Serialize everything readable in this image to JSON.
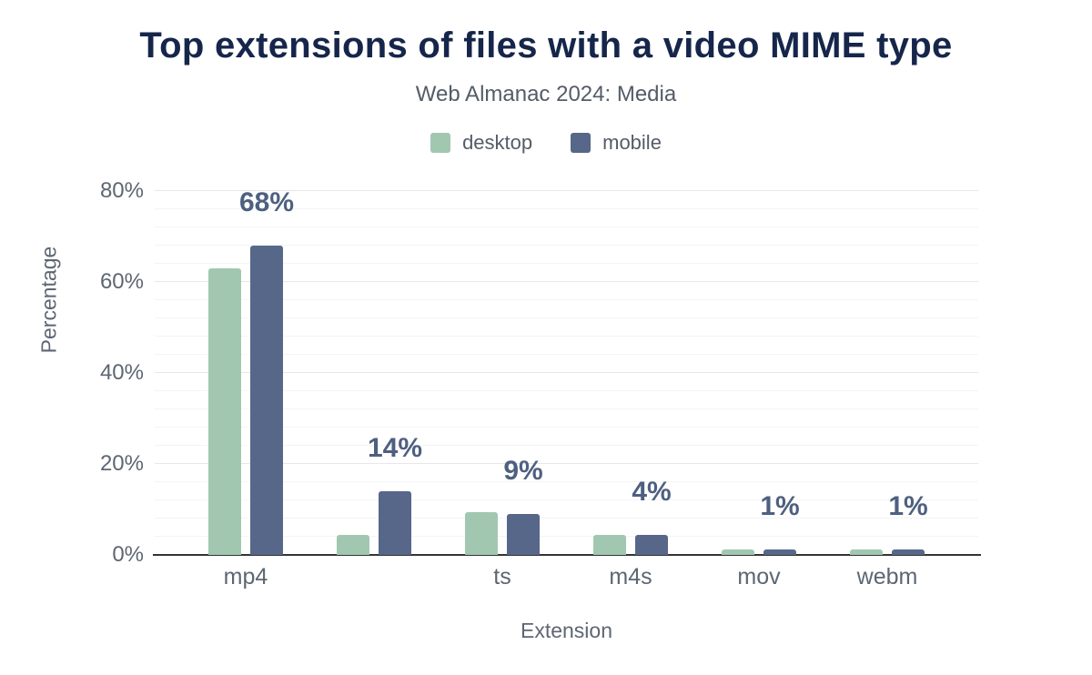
{
  "header": {
    "title": "Top extensions of files with a video MIME type",
    "subtitle": "Web Almanac 2024: Media"
  },
  "legend": [
    {
      "label": "desktop",
      "color": "#a2c7b1"
    },
    {
      "label": "mobile",
      "color": "#57678a"
    }
  ],
  "chart_data": {
    "type": "bar",
    "title": "Top extensions of files with a video MIME type",
    "subtitle": "Web Almanac 2024: Media",
    "categories": [
      "mp4",
      "",
      "ts",
      "m4s",
      "mov",
      "webm"
    ],
    "series": [
      {
        "name": "desktop",
        "color": "#a2c7b1",
        "values": [
          63,
          4.5,
          9.5,
          4.5,
          1.2,
          1.2
        ]
      },
      {
        "name": "mobile",
        "color": "#57678a",
        "values": [
          68,
          14,
          9,
          4.5,
          1.2,
          1.2
        ]
      }
    ],
    "annotations": [
      "68%",
      "14%",
      "9%",
      "4%",
      "1%",
      "1%"
    ],
    "annotation_series": "mobile",
    "xlabel": "Extension",
    "ylabel": "Percentage",
    "ylim": [
      0,
      84
    ],
    "yticks": [
      0,
      20,
      40,
      60,
      80
    ],
    "ytick_labels": [
      "0%",
      "20%",
      "40%",
      "60%",
      "80%"
    ],
    "grid": true,
    "legend_position": "top"
  },
  "colors": {
    "title": "#16264b",
    "subtitle": "#545c68",
    "axis_text": "#5d6673",
    "annotation": "#4e6080",
    "gridline_major": "#e7e7e7",
    "gridline_minor": "#f4f4f4",
    "baseline": "#343434"
  }
}
